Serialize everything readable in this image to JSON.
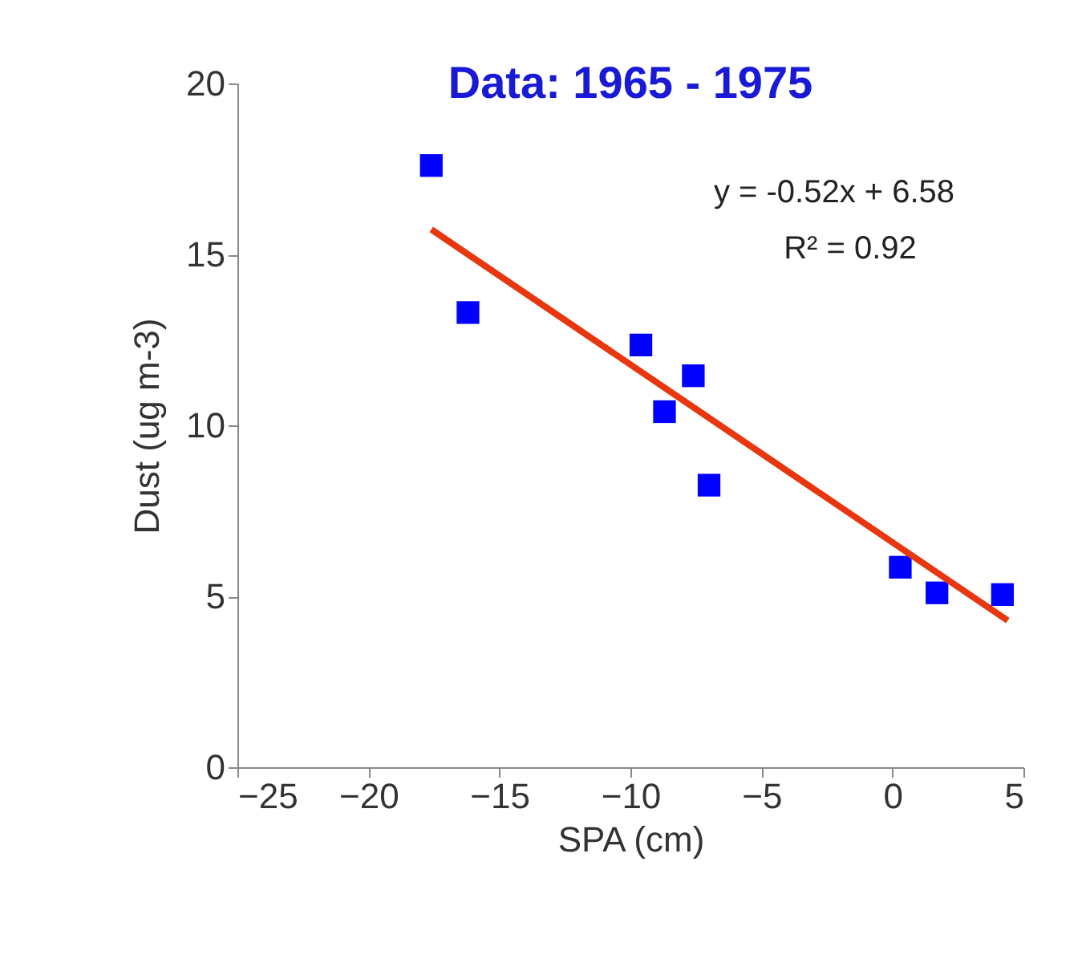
{
  "chart_data": {
    "type": "scatter",
    "title": "Data: 1965 - 1975",
    "xlabel": "SPA (cm)",
    "ylabel": "Dust (ug m-3)",
    "xlim": [
      -25,
      5
    ],
    "xticks": [
      -25,
      -20,
      -15,
      -10,
      -5,
      0,
      5
    ],
    "ylim": [
      0,
      20
    ],
    "yticks": [
      0,
      5,
      10,
      15,
      20
    ],
    "grid": false,
    "series": [
      {
        "marker": "square",
        "color": "#0000ff",
        "x": [
          -17.6,
          -16.2,
          -9.6,
          -8.7,
          -7.6,
          -7.0,
          0.3,
          1.7,
          4.2
        ],
        "values": [
          17.6,
          13.3,
          12.35,
          10.4,
          11.45,
          8.25,
          5.85,
          5.1,
          5.05
        ]
      },
      {
        "type": "line",
        "line_style": "solid",
        "color": "#e8360e",
        "x": [
          -17.6,
          4.4
        ],
        "values": [
          15.73,
          4.29
        ]
      }
    ],
    "annotations": [
      "y = -0.52x + 6.58",
      "R² = 0.92"
    ]
  }
}
